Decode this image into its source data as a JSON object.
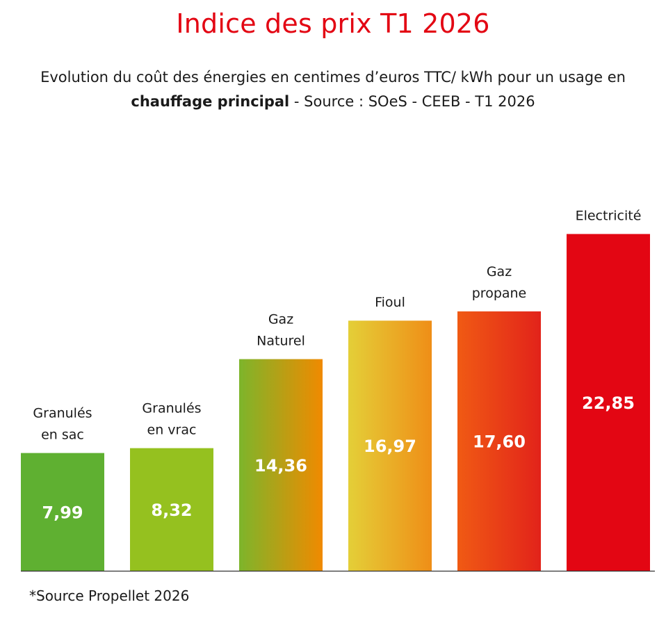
{
  "title": "Indice des prix T1 2026",
  "subtitle": {
    "line1": "Evolution du coût des énergies en centimes d’euros TTC/ kWh pour un usage en",
    "line2_bold": "chauffage principal",
    "line2_rest": " - Source : SOeS - CEEB - T1 2026"
  },
  "footnote": "*Source Propellet 2026",
  "colors": {
    "title": "#e30613",
    "value_label": "#ffffff",
    "axis": "#333333"
  },
  "chart_data": {
    "type": "bar",
    "categories": [
      [
        "Granulés",
        "en sac"
      ],
      [
        "Granulés",
        "en vrac"
      ],
      [
        "Gaz",
        "Naturel"
      ],
      [
        "Fioul"
      ],
      [
        "Gaz",
        "propane"
      ],
      [
        "Electricité"
      ]
    ],
    "values": [
      7.99,
      8.32,
      14.36,
      16.97,
      17.6,
      22.85
    ],
    "value_labels": [
      "7,99",
      "8,32",
      "14,36",
      "16,97",
      "17,60",
      "22,85"
    ],
    "bar_colors": [
      [
        "#5fb031",
        "#5fb031"
      ],
      [
        "#95c11f",
        "#95c11f"
      ],
      [
        "#7db52b",
        "#f08a00"
      ],
      [
        "#e4cf38",
        "#ef8e17"
      ],
      [
        "#f05a14",
        "#e2231a"
      ],
      [
        "#e30613",
        "#e30613"
      ]
    ],
    "title": "",
    "xlabel": "",
    "ylabel": "",
    "ylim": [
      0,
      24
    ]
  }
}
